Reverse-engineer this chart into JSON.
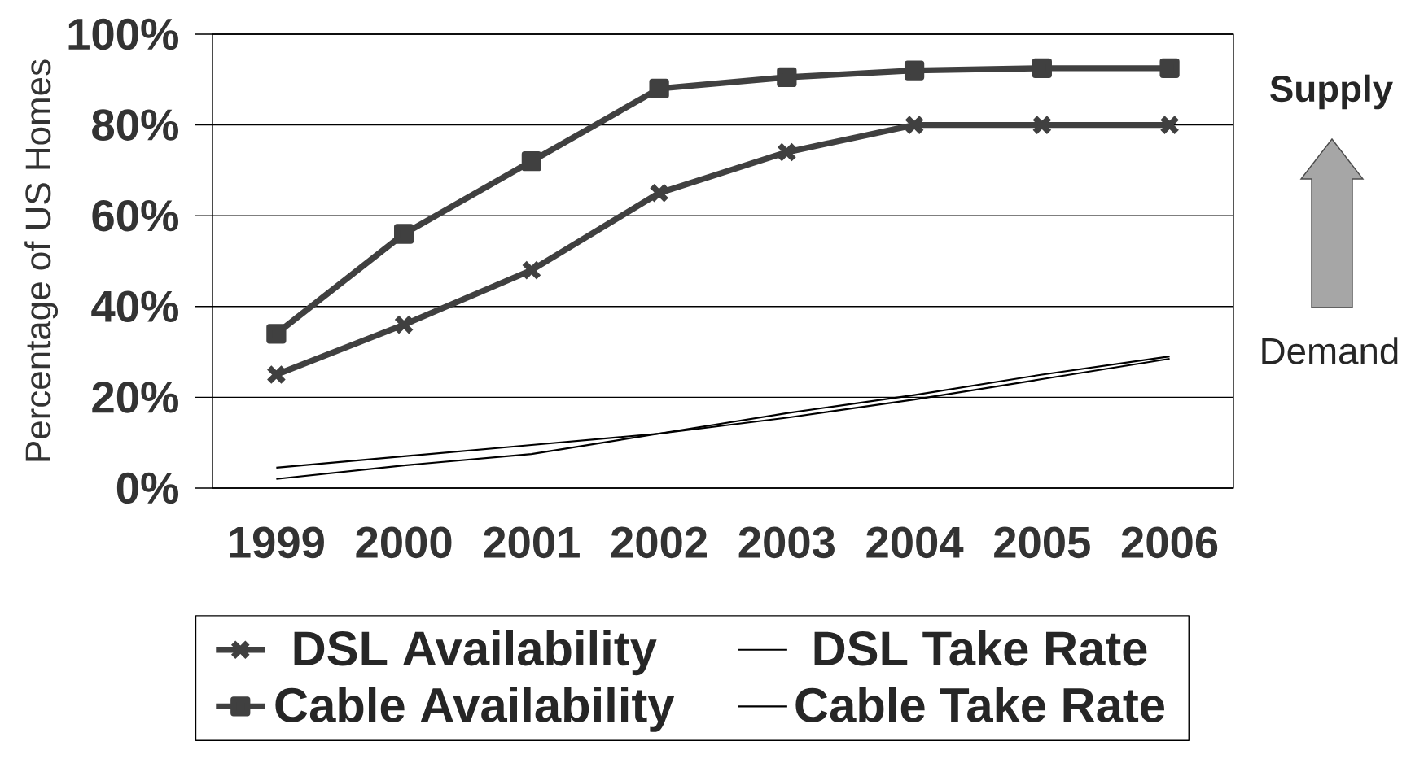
{
  "chart_data": {
    "type": "line",
    "ylabel": "Percentage of US Homes",
    "categories": [
      "1999",
      "2000",
      "2001",
      "2002",
      "2003",
      "2004",
      "2005",
      "2006"
    ],
    "series": [
      {
        "name": "DSL Availability",
        "color": "#404040",
        "marker": "cross",
        "values": [
          25,
          36,
          48,
          65,
          74,
          80,
          80,
          80
        ]
      },
      {
        "name": "DSL Take Rate",
        "color": "#000000",
        "marker": "none",
        "values": [
          2,
          5,
          7.5,
          12,
          16.5,
          20.5,
          25,
          29
        ]
      },
      {
        "name": "Cable Availability",
        "color": "#404040",
        "marker": "square",
        "values": [
          34,
          56,
          72,
          88,
          90.5,
          92,
          92.5,
          92.5
        ]
      },
      {
        "name": "Cable Take Rate",
        "color": "#000000",
        "marker": "none",
        "values": [
          4.5,
          7,
          9.5,
          12,
          15.5,
          19.5,
          24,
          28.5
        ]
      }
    ],
    "ylim": [
      0,
      100
    ],
    "yticks": [
      {
        "value": 0,
        "label": "0%"
      },
      {
        "value": 20,
        "label": "20%"
      },
      {
        "value": 40,
        "label": "40%"
      },
      {
        "value": 60,
        "label": "60%"
      },
      {
        "value": 80,
        "label": "80%"
      },
      {
        "value": 100,
        "label": "100%"
      }
    ],
    "grid": "y",
    "legend": "bottom",
    "annotations": [
      "Supply",
      "Demand"
    ]
  }
}
